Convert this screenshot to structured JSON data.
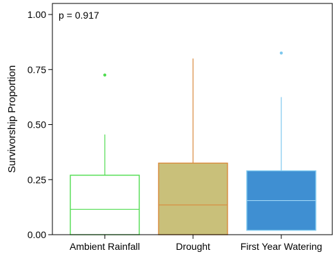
{
  "chart_data": {
    "type": "box",
    "title": "",
    "annotation": "p = 0.917",
    "xlabel": "",
    "ylabel": "Survivorship Proportion",
    "ylim": [
      0,
      1
    ],
    "yticks": [
      "0.00",
      "0.25",
      "0.50",
      "0.75",
      "1.00"
    ],
    "ytick_values": [
      0,
      0.25,
      0.5,
      0.75,
      1.0
    ],
    "categories": [
      "Ambient Rainfall",
      "Drought",
      "First Year Watering"
    ],
    "boxes": [
      {
        "category": "Ambient Rainfall",
        "min": 0.0,
        "q1": 0.0,
        "median": 0.115,
        "q3": 0.27,
        "max": 0.455,
        "outliers": [
          0.725
        ],
        "line_color": "#4fdc4f",
        "fill_color": "#ffffff",
        "median_color": "#4fdc4f"
      },
      {
        "category": "Drought",
        "min": 0.0,
        "q1": 0.0,
        "median": 0.135,
        "q3": 0.325,
        "max": 0.8,
        "outliers": [],
        "line_color": "#d98a3c",
        "fill_color": "#c9c07a",
        "median_color": "#d98a3c"
      },
      {
        "category": "First Year Watering",
        "min": 0.02,
        "q1": 0.02,
        "median": 0.155,
        "q3": 0.29,
        "max": 0.625,
        "outliers": [
          0.825
        ],
        "line_color": "#7ec8ee",
        "fill_color": "#3f8fd2",
        "median_color": "#9fd6f5"
      }
    ],
    "grid": false
  }
}
